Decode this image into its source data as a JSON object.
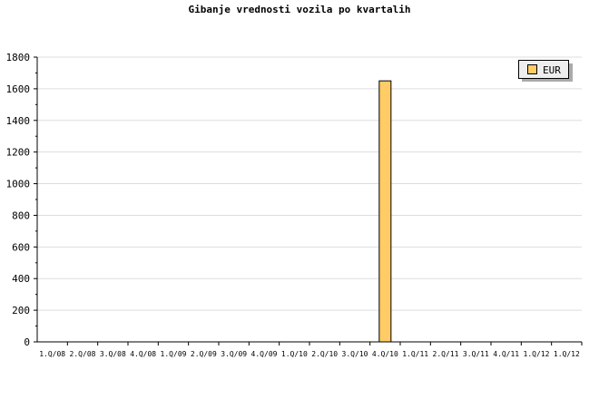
{
  "chart_data": {
    "type": "bar",
    "title": "Gibanje vrednosti vozila po kvartalih",
    "xlabel": "",
    "ylabel": "",
    "categories": [
      "1.Q/08",
      "2.Q/08",
      "3.Q/08",
      "4.Q/08",
      "1.Q/09",
      "2.Q/09",
      "3.Q/09",
      "4.Q/09",
      "1.Q/10",
      "2.Q/10",
      "3.Q/10",
      "4.Q/10",
      "1.Q/11",
      "2.Q/11",
      "3.Q/11",
      "4.Q/11",
      "1.Q/12",
      "1.Q/12"
    ],
    "series": [
      {
        "name": "EUR",
        "color": "#ffcc66",
        "values": [
          0,
          0,
          0,
          0,
          0,
          0,
          0,
          0,
          0,
          0,
          0,
          1650,
          0,
          0,
          0,
          0,
          0,
          0
        ]
      }
    ],
    "ylim": [
      0,
      1800
    ],
    "yticks": [
      0,
      200,
      400,
      600,
      800,
      1000,
      1200,
      1400,
      1600,
      1800
    ],
    "grid": true,
    "legend": "top-right"
  }
}
